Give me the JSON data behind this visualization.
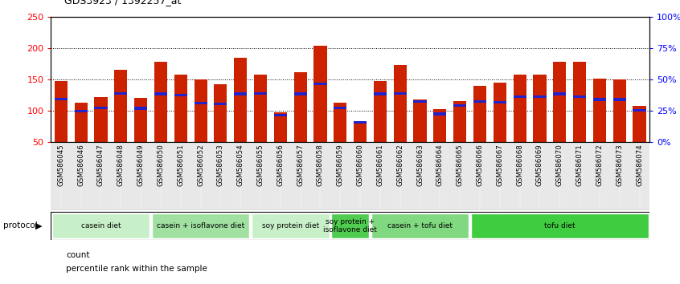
{
  "title": "GDS3923 / 1392257_at",
  "samples": [
    "GSM586045",
    "GSM586046",
    "GSM586047",
    "GSM586048",
    "GSM586049",
    "GSM586050",
    "GSM586051",
    "GSM586052",
    "GSM586053",
    "GSM586054",
    "GSM586055",
    "GSM586056",
    "GSM586057",
    "GSM586058",
    "GSM586059",
    "GSM586060",
    "GSM586061",
    "GSM586062",
    "GSM586063",
    "GSM586064",
    "GSM586065",
    "GSM586066",
    "GSM586067",
    "GSM586068",
    "GSM586069",
    "GSM586070",
    "GSM586071",
    "GSM586072",
    "GSM586073",
    "GSM586074"
  ],
  "count_values": [
    148,
    113,
    122,
    165,
    120,
    178,
    158,
    150,
    143,
    185,
    158,
    98,
    162,
    204,
    113,
    80,
    147,
    173,
    118,
    103,
    115,
    140,
    145,
    158,
    158,
    178,
    178,
    152,
    150,
    108
  ],
  "percentile_values": [
    119,
    100,
    105,
    128,
    104,
    127,
    125,
    112,
    111,
    127,
    128,
    93,
    127,
    143,
    105,
    82,
    127,
    128,
    115,
    95,
    108,
    115,
    113,
    122,
    122,
    127,
    122,
    118,
    118,
    101
  ],
  "groups": [
    {
      "label": "casein diet",
      "start": 0,
      "end": 5,
      "color": "#c8f0c8"
    },
    {
      "label": "casein + isoflavone diet",
      "start": 5,
      "end": 10,
      "color": "#a0e0a0"
    },
    {
      "label": "soy protein diet",
      "start": 10,
      "end": 14,
      "color": "#c8f0c8"
    },
    {
      "label": "soy protein +\nisoflavone diet",
      "start": 14,
      "end": 16,
      "color": "#50cc50"
    },
    {
      "label": "casein + tofu diet",
      "start": 16,
      "end": 21,
      "color": "#80d880"
    },
    {
      "label": "tofu diet",
      "start": 21,
      "end": 30,
      "color": "#40cc40"
    }
  ],
  "bar_color": "#cc2200",
  "blue_color": "#2222cc",
  "ylim_left": [
    50,
    250
  ],
  "ylim_right": [
    0,
    100
  ],
  "yticks_left": [
    50,
    100,
    150,
    200,
    250
  ],
  "yticks_right": [
    0,
    25,
    50,
    75,
    100
  ],
  "ytick_labels_right": [
    "0%",
    "25%",
    "50%",
    "75%",
    "100%"
  ],
  "grid_values": [
    100,
    150,
    200
  ],
  "bar_width": 0.65
}
